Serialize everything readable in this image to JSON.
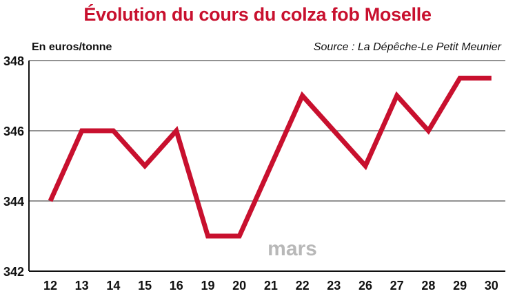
{
  "title": "Évolution du cours du colza fob Moselle",
  "unit_label": "En euros/tonne",
  "source": "Source : La Dépêche-Le Petit Meunier",
  "month_label": "mars",
  "colors": {
    "title": "#c8102e",
    "line": "#c8102e",
    "grid": "#6e6e6e",
    "month": "#b8b8b8"
  },
  "chart_data": {
    "type": "line",
    "title": "Évolution du cours du colza fob Moselle",
    "xlabel": "mars",
    "ylabel": "En euros/tonne",
    "categories": [
      "12",
      "13",
      "14",
      "15",
      "16",
      "19",
      "20",
      "21",
      "22",
      "23",
      "26",
      "27",
      "28",
      "29",
      "30"
    ],
    "values": [
      344,
      346,
      346,
      345,
      346,
      343,
      343,
      345,
      347,
      346,
      345,
      347,
      346,
      347.5,
      347.5
    ],
    "ylim": [
      342,
      348
    ],
    "yticks": [
      342,
      344,
      346,
      348
    ],
    "grid": true
  }
}
